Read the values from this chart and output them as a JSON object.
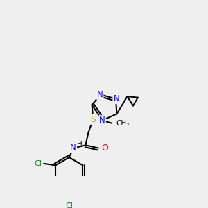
{
  "bg_color": "#efefef",
  "atom_colors": {
    "N": "#0000ff",
    "O": "#ff0000",
    "S": "#ccaa00",
    "Cl": "#008000",
    "C": "#000000",
    "H": "#000000"
  },
  "bond_color": "#000000",
  "bond_width": 1.5,
  "figsize": [
    3.0,
    3.0
  ],
  "dpi": 100
}
